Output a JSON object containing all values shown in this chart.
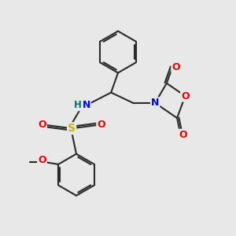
{
  "bg_color": "#e8e8e8",
  "bond_color": "#2a2a2a",
  "atom_colors": {
    "N": "#0000ee",
    "O": "#ee0000",
    "S": "#bbbb00",
    "H": "#007070",
    "C": "#2a2a2a"
  },
  "bond_width": 1.5,
  "figsize": [
    3.0,
    3.0
  ],
  "dpi": 100
}
